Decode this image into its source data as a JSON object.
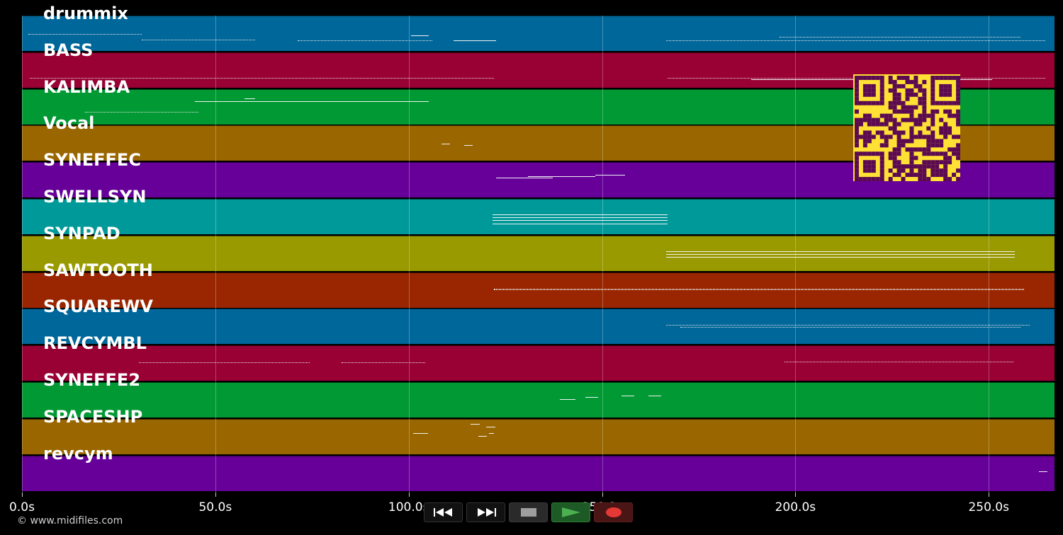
{
  "tracks": [
    {
      "label": "drummix",
      "color": "#00679a"
    },
    {
      "label": "BASS",
      "color": "#990033"
    },
    {
      "label": "KALIMBA",
      "color": "#009933"
    },
    {
      "label": "Vocal",
      "color": "#996600"
    },
    {
      "label": "SYNEFFEC",
      "color": "#660099"
    },
    {
      "label": "SWELLSYN",
      "color": "#009999"
    },
    {
      "label": "SYNPAD",
      "color": "#999900"
    },
    {
      "label": "SAWTOOTH",
      "color": "#992600"
    },
    {
      "label": "SQUAREWV",
      "color": "#00679a"
    },
    {
      "label": "REVCYMBL",
      "color": "#990033"
    },
    {
      "label": "SYNEFFE2",
      "color": "#009933"
    },
    {
      "label": "SPACESHP",
      "color": "#996600"
    },
    {
      "label": "revcym",
      "color": "#660099"
    }
  ],
  "time_axis": {
    "unit": "s",
    "max": 267,
    "ticks": [
      {
        "value": 0,
        "label": "0.0s"
      },
      {
        "value": 50,
        "label": "50.0s"
      },
      {
        "value": 100,
        "label": "100.0s"
      },
      {
        "value": 150,
        "label": "150.0s"
      },
      {
        "value": 200,
        "label": "200.0s"
      },
      {
        "value": 250,
        "label": "250.0s"
      }
    ]
  },
  "transport": {
    "rewind_icon": "rewind-icon",
    "fast_forward_icon": "fast-forward-icon",
    "stop_icon": "stop-icon",
    "play_icon": "play-icon",
    "record_icon": "record-icon",
    "play_color": "#4caf50",
    "record_color": "#e53935"
  },
  "qr_code": {
    "fg_color": "#5b0a52",
    "bg_color": "#ffe135"
  },
  "footer": {
    "copyright": "© www.midifiles.com"
  }
}
